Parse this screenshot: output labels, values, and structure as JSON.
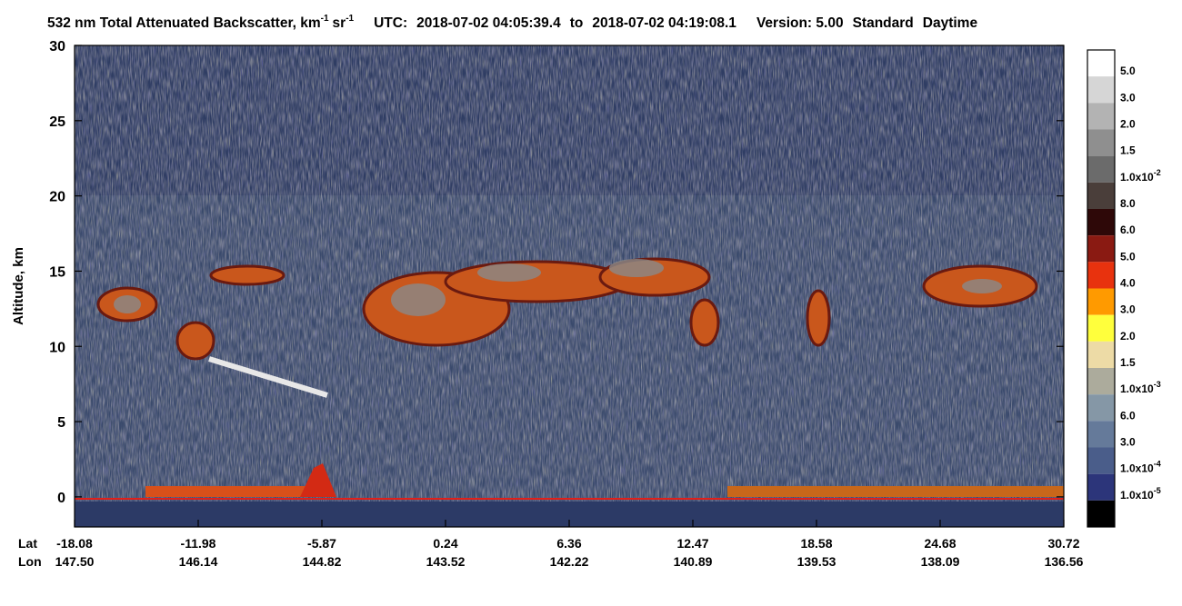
{
  "chart_data": {
    "type": "heatmap",
    "title": {
      "text": "532 nm Total Attenuated Backscatter, km",
      "exp1": "-1",
      "unit": "sr",
      "exp2": "-1"
    },
    "utc_label": "UTC:",
    "start": "2018-07-02 04:05:39.4",
    "to": "to",
    "end": "2018-07-02 04:19:08.1",
    "version": "Version: 5.00",
    "mode": "Standard",
    "time_of_day": "Daytime",
    "ylabel": "Altitude, km",
    "ylim": [
      -2,
      30
    ],
    "yticks": [
      0,
      5,
      10,
      15,
      20,
      25,
      30
    ],
    "x_rows": [
      {
        "name": "Lat",
        "labels": [
          "-18.08",
          "-11.98",
          "-5.87",
          "0.24",
          "6.36",
          "12.47",
          "18.58",
          "24.68",
          "30.72"
        ]
      },
      {
        "name": "Lon",
        "labels": [
          "147.50",
          "146.14",
          "144.82",
          "143.52",
          "142.22",
          "140.89",
          "139.53",
          "138.09",
          "136.56"
        ]
      }
    ],
    "colorbar": {
      "colors": [
        "#ffffff",
        "#d6d6d6",
        "#b3b3b3",
        "#8f8f8f",
        "#6b6b6b",
        "#4a3e3a",
        "#2e0808",
        "#8a1a12",
        "#e8320e",
        "#ff9a00",
        "#ffff3c",
        "#eddba6",
        "#acab9c",
        "#8597a6",
        "#657a9a",
        "#4a5d8a",
        "#2c357a",
        "#000000"
      ],
      "labels": [
        {
          "text": "5.0"
        },
        {
          "text": "3.0"
        },
        {
          "text": "2.0"
        },
        {
          "text": "1.5"
        },
        {
          "text": "1.0x10",
          "exp": "-2"
        },
        {
          "text": "8.0"
        },
        {
          "text": "6.0"
        },
        {
          "text": "5.0"
        },
        {
          "text": "4.0"
        },
        {
          "text": "3.0"
        },
        {
          "text": "2.0"
        },
        {
          "text": "1.5"
        },
        {
          "text": "1.0x10",
          "exp": "-3"
        },
        {
          "text": "6.0"
        },
        {
          "text": "3.0"
        },
        {
          "text": "1.0x10",
          "exp": "-4"
        },
        {
          "text": "1.0x10",
          "exp": "-5"
        }
      ]
    }
  }
}
